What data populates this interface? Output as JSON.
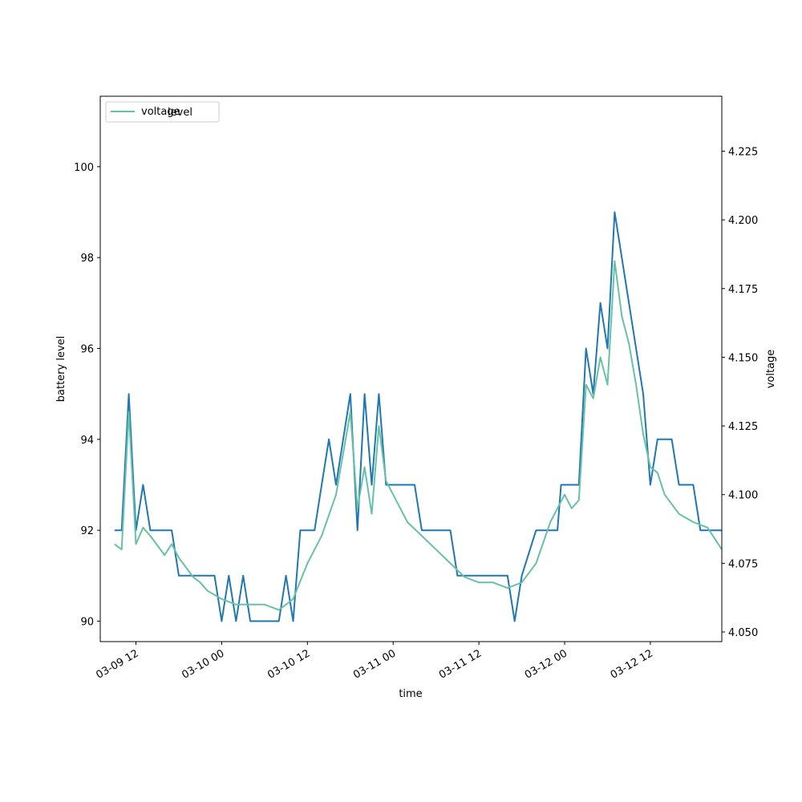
{
  "chart_data": {
    "type": "line",
    "xlabel": "time",
    "ylabel_left": "battery level",
    "ylabel_right": "voltage",
    "x_ticks": [
      "03-09 12",
      "03-10 00",
      "03-10 12",
      "03-11 00",
      "03-11 12",
      "03-12 00",
      "03-12 12"
    ],
    "y_left_ticks": [
      "90",
      "92",
      "94",
      "96",
      "98",
      "100"
    ],
    "y_right_ticks": [
      "4.050",
      "4.075",
      "4.100",
      "4.125",
      "4.150",
      "4.175",
      "4.200",
      "4.225"
    ],
    "ylim_left": [
      89.55,
      101.55
    ],
    "ylim_right": [
      4.0465,
      4.245
    ],
    "x_range": [
      "03-09 07:00",
      "03-12 22:00"
    ],
    "legend": {
      "location": "upper-left",
      "entries": [
        "voltage",
        "level"
      ]
    },
    "series": [
      {
        "name": "level",
        "axis": "left",
        "color": "#1f77b4",
        "points": [
          [
            "03-09 09:00",
            92
          ],
          [
            "03-09 10:00",
            92
          ],
          [
            "03-09 11:00",
            95
          ],
          [
            "03-09 12:00",
            92
          ],
          [
            "03-09 13:00",
            93
          ],
          [
            "03-09 14:00",
            92
          ],
          [
            "03-09 17:00",
            92
          ],
          [
            "03-09 18:00",
            91
          ],
          [
            "03-09 23:00",
            91
          ],
          [
            "03-10 00:00",
            90
          ],
          [
            "03-10 01:00",
            91
          ],
          [
            "03-10 02:00",
            90
          ],
          [
            "03-10 03:00",
            91
          ],
          [
            "03-10 04:00",
            90
          ],
          [
            "03-10 08:00",
            90
          ],
          [
            "03-10 09:00",
            91
          ],
          [
            "03-10 10:00",
            90
          ],
          [
            "03-10 11:00",
            92
          ],
          [
            "03-10 13:00",
            92
          ],
          [
            "03-10 14:00",
            93
          ],
          [
            "03-10 15:00",
            94
          ],
          [
            "03-10 16:00",
            93
          ],
          [
            "03-10 17:00",
            94
          ],
          [
            "03-10 18:00",
            95
          ],
          [
            "03-10 19:00",
            92
          ],
          [
            "03-10 20:00",
            95
          ],
          [
            "03-10 21:00",
            93
          ],
          [
            "03-10 22:00",
            95
          ],
          [
            "03-10 23:00",
            93
          ],
          [
            "03-11 03:00",
            93
          ],
          [
            "03-11 04:00",
            92
          ],
          [
            "03-11 08:00",
            92
          ],
          [
            "03-11 09:00",
            91
          ],
          [
            "03-11 16:00",
            91
          ],
          [
            "03-11 17:00",
            90
          ],
          [
            "03-11 18:00",
            91
          ],
          [
            "03-11 20:00",
            92
          ],
          [
            "03-11 23:00",
            92
          ],
          [
            "03-11 23:30",
            93
          ],
          [
            "03-12 00:00",
            93
          ],
          [
            "03-12 02:00",
            93
          ],
          [
            "03-12 03:00",
            96
          ],
          [
            "03-12 04:00",
            95
          ],
          [
            "03-12 05:00",
            97
          ],
          [
            "03-12 06:00",
            96
          ],
          [
            "03-12 07:00",
            99
          ],
          [
            "03-12 08:00",
            98
          ],
          [
            "03-12 09:00",
            97
          ],
          [
            "03-12 10:00",
            96
          ],
          [
            "03-12 11:00",
            95
          ],
          [
            "03-12 12:00",
            93
          ],
          [
            "03-12 13:00",
            94
          ],
          [
            "03-12 15:00",
            94
          ],
          [
            "03-12 16:00",
            93
          ],
          [
            "03-12 18:00",
            93
          ],
          [
            "03-12 19:00",
            92
          ],
          [
            "03-12 22:00",
            92
          ]
        ]
      },
      {
        "name": "voltage",
        "axis": "right",
        "color": "#66c2a5",
        "points": [
          [
            "03-09 09:00",
            4.082
          ],
          [
            "03-09 10:00",
            4.08
          ],
          [
            "03-09 11:00",
            4.13
          ],
          [
            "03-09 12:00",
            4.082
          ],
          [
            "03-09 13:00",
            4.088
          ],
          [
            "03-09 14:00",
            4.085
          ],
          [
            "03-09 16:00",
            4.078
          ],
          [
            "03-09 17:00",
            4.082
          ],
          [
            "03-09 18:00",
            4.077
          ],
          [
            "03-09 20:00",
            4.07
          ],
          [
            "03-09 21:00",
            4.068
          ],
          [
            "03-09 22:00",
            4.065
          ],
          [
            "03-10 00:00",
            4.062
          ],
          [
            "03-10 02:00",
            4.06
          ],
          [
            "03-10 06:00",
            4.06
          ],
          [
            "03-10 08:00",
            4.058
          ],
          [
            "03-10 10:00",
            4.062
          ],
          [
            "03-10 12:00",
            4.075
          ],
          [
            "03-10 14:00",
            4.085
          ],
          [
            "03-10 16:00",
            4.1
          ],
          [
            "03-10 18:00",
            4.13
          ],
          [
            "03-10 19:00",
            4.095
          ],
          [
            "03-10 20:00",
            4.11
          ],
          [
            "03-10 21:00",
            4.093
          ],
          [
            "03-10 22:00",
            4.125
          ],
          [
            "03-10 23:00",
            4.105
          ],
          [
            "03-11 00:00",
            4.1
          ],
          [
            "03-11 02:00",
            4.09
          ],
          [
            "03-11 04:00",
            4.085
          ],
          [
            "03-11 06:00",
            4.08
          ],
          [
            "03-11 08:00",
            4.075
          ],
          [
            "03-11 10:00",
            4.07
          ],
          [
            "03-11 12:00",
            4.068
          ],
          [
            "03-11 14:00",
            4.068
          ],
          [
            "03-11 16:00",
            4.066
          ],
          [
            "03-11 18:00",
            4.068
          ],
          [
            "03-11 20:00",
            4.075
          ],
          [
            "03-11 22:00",
            4.09
          ],
          [
            "03-12 00:00",
            4.1
          ],
          [
            "03-12 01:00",
            4.095
          ],
          [
            "03-12 02:00",
            4.098
          ],
          [
            "03-12 03:00",
            4.14
          ],
          [
            "03-12 04:00",
            4.135
          ],
          [
            "03-12 05:00",
            4.15
          ],
          [
            "03-12 06:00",
            4.14
          ],
          [
            "03-12 07:00",
            4.185
          ],
          [
            "03-12 08:00",
            4.165
          ],
          [
            "03-12 09:00",
            4.155
          ],
          [
            "03-12 10:00",
            4.14
          ],
          [
            "03-12 11:00",
            4.122
          ],
          [
            "03-12 12:00",
            4.11
          ],
          [
            "03-12 13:00",
            4.108
          ],
          [
            "03-12 14:00",
            4.1
          ],
          [
            "03-12 16:00",
            4.093
          ],
          [
            "03-12 18:00",
            4.09
          ],
          [
            "03-12 20:00",
            4.088
          ],
          [
            "03-12 22:00",
            4.08
          ]
        ]
      }
    ]
  }
}
